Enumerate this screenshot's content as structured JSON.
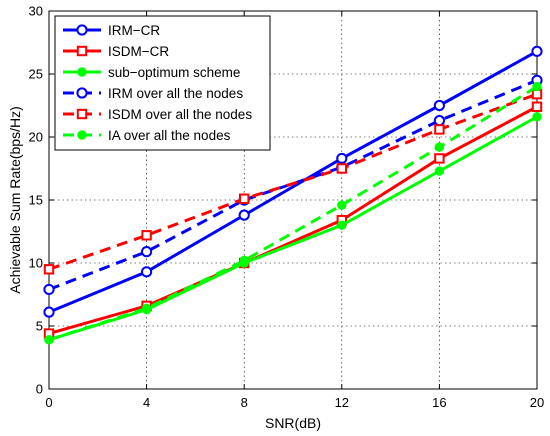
{
  "chart_data": {
    "type": "line",
    "title": "",
    "xlabel": "SNR(dB)",
    "ylabel": "Achievable Sum Rate(bps/Hz)",
    "x": [
      0,
      4,
      8,
      12,
      16,
      20
    ],
    "xlim": [
      0,
      20
    ],
    "ylim": [
      0,
      30
    ],
    "xticks": [
      0,
      4,
      8,
      12,
      16,
      20
    ],
    "yticks": [
      0,
      5,
      10,
      15,
      20,
      25,
      30
    ],
    "grid": true,
    "legend_position": "top-left",
    "series": [
      {
        "name": "IRM−CR",
        "values": [
          6.1,
          9.3,
          13.8,
          18.3,
          22.5,
          26.8
        ],
        "color": "#0000ff",
        "line": "solid",
        "marker": "circle"
      },
      {
        "name": "ISDM−CR",
        "values": [
          4.4,
          6.6,
          10.0,
          13.4,
          18.3,
          22.4
        ],
        "color": "#ff0000",
        "line": "solid",
        "marker": "square"
      },
      {
        "name": "sub−optimum scheme",
        "values": [
          3.9,
          6.3,
          10.0,
          13.0,
          17.3,
          21.6
        ],
        "color": "#00ff00",
        "line": "solid",
        "marker": "dot"
      },
      {
        "name": "IRM over all the nodes",
        "values": [
          7.9,
          10.9,
          15.0,
          17.6,
          21.3,
          24.5
        ],
        "color": "#0000ff",
        "line": "dashed",
        "marker": "circle"
      },
      {
        "name": "ISDM over all the nodes",
        "values": [
          9.5,
          12.2,
          15.1,
          17.5,
          20.6,
          23.4
        ],
        "color": "#ff0000",
        "line": "dashed",
        "marker": "square"
      },
      {
        "name": "IA over all the nodes",
        "values": [
          3.9,
          6.4,
          10.2,
          14.6,
          19.2,
          24.0
        ],
        "color": "#00ff00",
        "line": "dashed",
        "marker": "dot"
      }
    ]
  }
}
